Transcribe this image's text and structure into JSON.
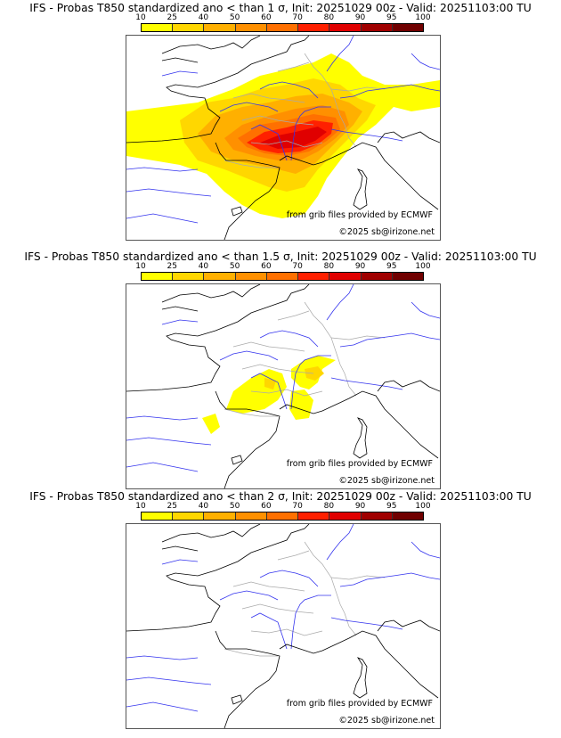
{
  "panels": [
    {
      "title": "IFS - Probas T850  standardized ano < than 1 σ, Init: 20251029 00z - Valid: 20251103:00 TU",
      "threshold": "1 σ",
      "intensity": "high",
      "source_credit": "from grib files provided by ECMWF",
      "copyright": "©2025 sb@irizone.net"
    },
    {
      "title": "IFS - Probas T850  standardized ano < than 1.5 σ, Init: 20251029 00z - Valid: 20251103:00 TU",
      "threshold": "1.5 σ",
      "intensity": "low",
      "source_credit": "from grib files provided by ECMWF",
      "copyright": "©2025 sb@irizone.net"
    },
    {
      "title": "IFS - Probas T850  standardized ano < than 2 σ, Init: 20251029 00z - Valid: 20251103:00 TU",
      "threshold": "2 σ",
      "intensity": "none",
      "source_credit": "from grib files provided by ECMWF",
      "copyright": "©2025 sb@irizone.net"
    }
  ],
  "colorbar": {
    "ticks": [
      "10",
      "25",
      "40",
      "50",
      "60",
      "70",
      "80",
      "90",
      "95",
      "100"
    ],
    "colors": [
      "#ffff00",
      "#ffd700",
      "#ffb000",
      "#ff9000",
      "#ff7000",
      "#ff2000",
      "#e00000",
      "#a00000",
      "#700000"
    ]
  },
  "map_colors": {
    "coast": "#000000",
    "rivers": "#3333ee",
    "borders": "#aaaaaa"
  }
}
